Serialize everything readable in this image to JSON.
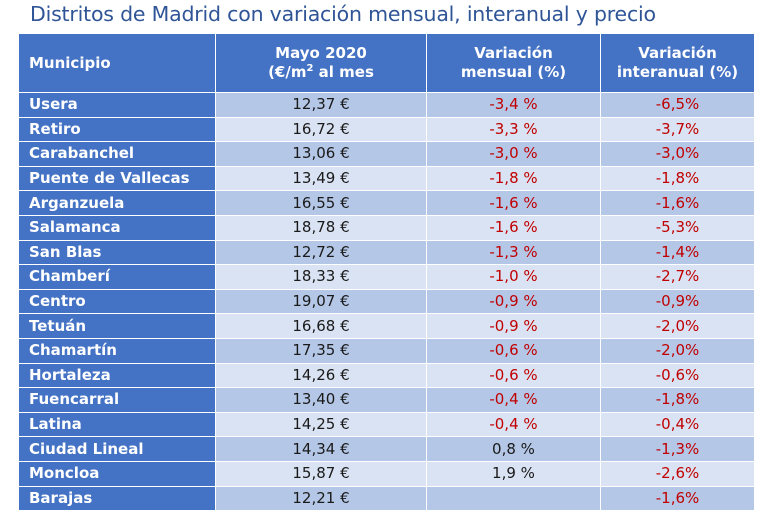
{
  "title": "Distritos de Madrid con variación mensual, interanual y precio",
  "columns": {
    "municipio": "Municipio",
    "price_line1": "Mayo 2020",
    "price_line2_pre": "(€/m",
    "price_line2_sup": "2",
    "price_line2_post": " al mes",
    "monthly_line1": "Variación",
    "monthly_line2": "mensual (%)",
    "yearly_line1": "Variación",
    "yearly_line2": "interanual (%)"
  },
  "colors": {
    "header_blue": "#4472c4",
    "row_dark": "#b4c7e7",
    "row_light": "#dae3f3",
    "negative_red": "#c00000",
    "title_blue": "#2f5597"
  },
  "rows": [
    {
      "municipio": "Usera",
      "precio": "12,37 €",
      "mensual": "-3,4 %",
      "interanual": "-6,5%"
    },
    {
      "municipio": "Retiro",
      "precio": "16,72 €",
      "mensual": "-3,3 %",
      "interanual": "-3,7%"
    },
    {
      "municipio": "Carabanchel",
      "precio": "13,06 €",
      "mensual": "-3,0 %",
      "interanual": "-3,0%"
    },
    {
      "municipio": "Puente de Vallecas",
      "precio": "13,49 €",
      "mensual": "-1,8 %",
      "interanual": "-1,8%"
    },
    {
      "municipio": "Arganzuela",
      "precio": "16,55 €",
      "mensual": "-1,6 %",
      "interanual": "-1,6%"
    },
    {
      "municipio": "Salamanca",
      "precio": "18,78 €",
      "mensual": "-1,6 %",
      "interanual": "-5,3%"
    },
    {
      "municipio": "San Blas",
      "precio": "12,72 €",
      "mensual": "-1,3 %",
      "interanual": "-1,4%"
    },
    {
      "municipio": "Chamberí",
      "precio": "18,33 €",
      "mensual": "-1,0 %",
      "interanual": "-2,7%"
    },
    {
      "municipio": "Centro",
      "precio": "19,07 €",
      "mensual": "-0,9 %",
      "interanual": "-0,9%"
    },
    {
      "municipio": "Tetuán",
      "precio": "16,68 €",
      "mensual": "-0,9 %",
      "interanual": "-2,0%"
    },
    {
      "municipio": "Chamartín",
      "precio": "17,35 €",
      "mensual": "-0,6 %",
      "interanual": "-2,0%"
    },
    {
      "municipio": "Hortaleza",
      "precio": "14,26 €",
      "mensual": "-0,6 %",
      "interanual": "-0,6%"
    },
    {
      "municipio": "Fuencarral",
      "precio": "13,40 €",
      "mensual": "-0,4 %",
      "interanual": "-1,8%"
    },
    {
      "municipio": "Latina",
      "precio": "14,25 €",
      "mensual": "-0,4 %",
      "interanual": "-0,4%"
    },
    {
      "municipio": "Ciudad Lineal",
      "precio": "14,34 €",
      "mensual": "0,8 %",
      "interanual": "-1,3%"
    },
    {
      "municipio": "Moncloa",
      "precio": "15,87 €",
      "mensual": "1,9 %",
      "interanual": "-2,6%"
    },
    {
      "municipio": "Barajas",
      "precio": "12,21 €",
      "mensual": "",
      "interanual": "-1,6%"
    }
  ]
}
